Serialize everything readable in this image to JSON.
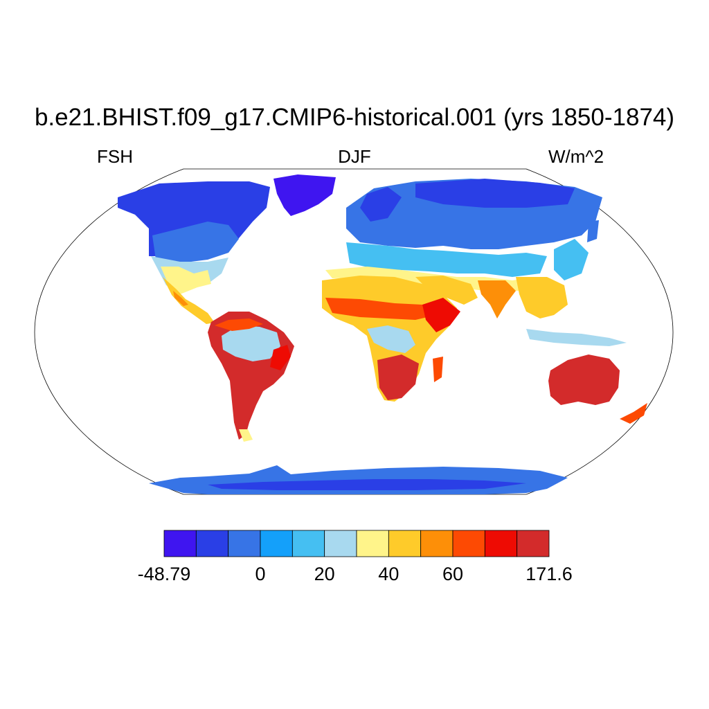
{
  "title": "b.e21.BHIST.f09_g17.CMIP6-historical.001 (yrs 1850-1874)",
  "subtitle_left": "FSH",
  "subtitle_center": "DJF",
  "subtitle_right": "W/m^2",
  "colorbar": {
    "colors": [
      "#3f15f0",
      "#2a3fe6",
      "#3774e6",
      "#14a0fa",
      "#45bff2",
      "#a8d9ef",
      "#fff48a",
      "#fecb2a",
      "#fd8f08",
      "#fd4a03",
      "#ee0b03",
      "#d32b2b"
    ],
    "tick_labels": [
      {
        "text": "-48.79",
        "edge": 0
      },
      {
        "text": "0",
        "edge": 3
      },
      {
        "text": "20",
        "edge": 5
      },
      {
        "text": "40",
        "edge": 7
      },
      {
        "text": "60",
        "edge": 9
      },
      {
        "text": "171.6",
        "edge": 12
      }
    ]
  },
  "map": {
    "projection": "Robinson",
    "field": "FSH",
    "season": "DJF",
    "units": "W/m^2"
  }
}
